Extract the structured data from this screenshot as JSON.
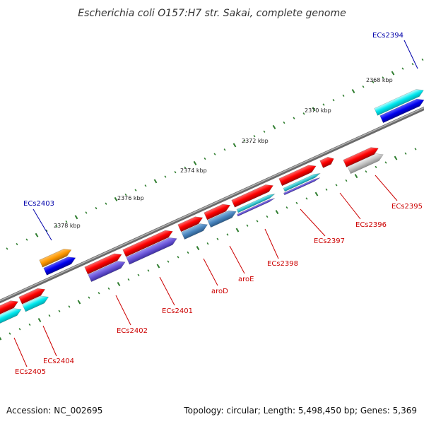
{
  "title": "Escherichia coli O157:H7 str. Sakai, complete genome",
  "footer": {
    "accession": "Accession: NC_002695",
    "summary": "Topology: circular; Length: 5,498,450 bp; Genes: 5,369"
  },
  "colors": {
    "backbone": "#8a8a8a",
    "tick": "#2e7d2e",
    "cds_forward": "#ff0000",
    "cds_reverse": "#3b1fe0",
    "label_red": "#cc0000",
    "label_blue": "#0000aa"
  },
  "scale_labels": [
    "2368 kbp",
    "2370 kbp",
    "2372 kbp",
    "2374 kbp",
    "2376 kbp",
    "2378 kbp"
  ],
  "features": [
    {
      "name": "ECs2394",
      "color": "#0000aa"
    },
    {
      "name": "ECs2395",
      "color": "#cc0000"
    },
    {
      "name": "ECs2396",
      "color": "#cc0000"
    },
    {
      "name": "ECs2397",
      "color": "#cc0000"
    },
    {
      "name": "ECs2398",
      "color": "#cc0000"
    },
    {
      "name": "aroE",
      "color": "#cc0000"
    },
    {
      "name": "aroD",
      "color": "#cc0000"
    },
    {
      "name": "ECs2401",
      "color": "#cc0000"
    },
    {
      "name": "ECs2402",
      "color": "#cc0000"
    },
    {
      "name": "ECs2403",
      "color": "#0000aa"
    },
    {
      "name": "ECs2404",
      "color": "#cc0000"
    },
    {
      "name": "ECs2405",
      "color": "#cc0000"
    }
  ]
}
